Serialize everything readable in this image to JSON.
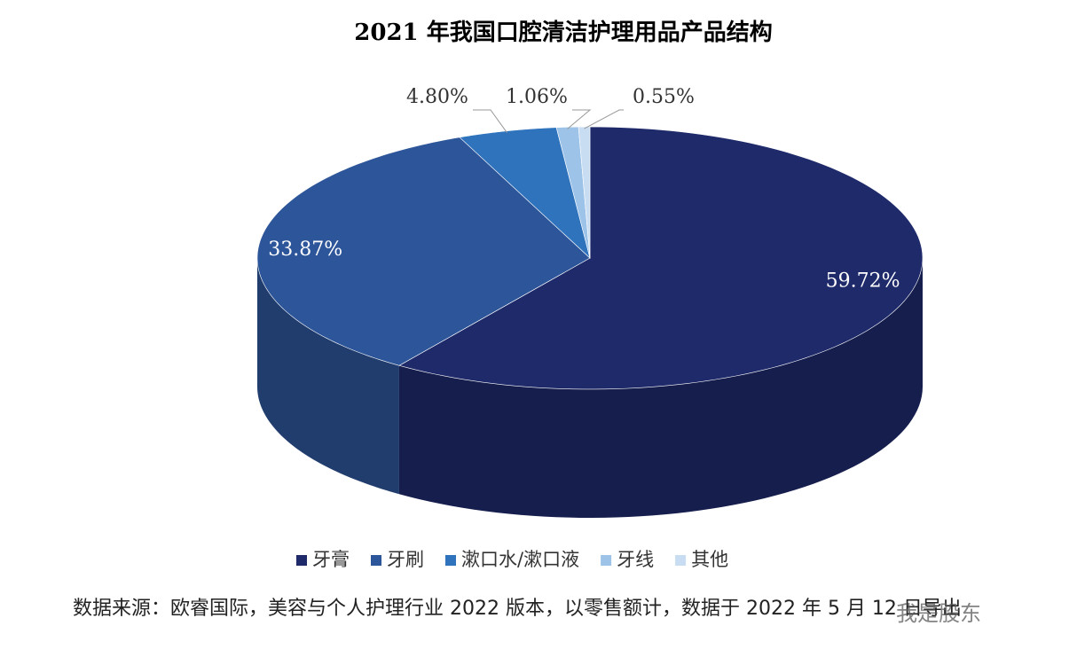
{
  "chart_data": {
    "type": "pie",
    "title": "2021 年我国口腔清洁护理用品产品结构",
    "categories": [
      "牙膏",
      "牙刷",
      "漱口水/漱口液",
      "牙线",
      "其他"
    ],
    "values": [
      59.72,
      33.87,
      4.8,
      1.06,
      0.55
    ],
    "value_labels": [
      "59.72%",
      "33.87%",
      "4.80%",
      "1.06%",
      "0.55%"
    ],
    "colors": [
      "#1f2a6b",
      "#2d5599",
      "#2f73bd",
      "#9dc3e8",
      "#c8ddf2"
    ],
    "note": "数据来源：欧睿国际，美容与个人护理行业 2022 版本，以零售额计，数据于 2022 年 5 月 12 日导出",
    "watermark": "我是股东"
  }
}
